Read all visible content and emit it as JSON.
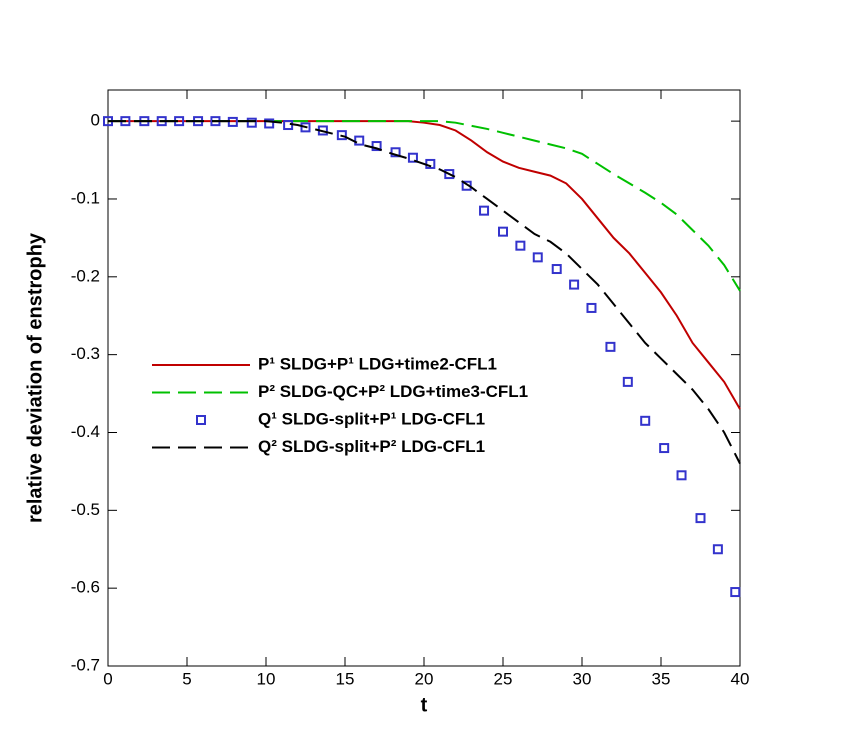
{
  "chart_data": {
    "type": "line",
    "xlabel": "t",
    "ylabel": "relative deviation of enstrophy",
    "xlim": [
      0,
      40
    ],
    "xticks": [
      0,
      5,
      10,
      15,
      20,
      25,
      30,
      35,
      40
    ],
    "ylim": [
      -0.7,
      0.04
    ],
    "yticks": [
      -0.7,
      -0.6,
      -0.5,
      -0.4,
      -0.3,
      -0.2,
      -0.1,
      0
    ],
    "legend": "center-left",
    "series": [
      {
        "name": "P¹ SLDG+P¹ LDG+time2-CFL1",
        "color": "#c00000",
        "style": "solid",
        "x": [
          0,
          1,
          2,
          3,
          4,
          5,
          6,
          7,
          8,
          9,
          10,
          11,
          12,
          13,
          14,
          15,
          16,
          17,
          18,
          19,
          20,
          21,
          22,
          23,
          24,
          25,
          26,
          27,
          28,
          29,
          30,
          31,
          32,
          33,
          34,
          35,
          36,
          37,
          38,
          39,
          40
        ],
        "values": [
          0,
          0,
          0,
          0,
          0,
          0,
          0,
          0,
          0,
          0,
          0,
          0,
          0,
          0,
          0,
          0,
          0,
          0,
          0,
          0,
          -0.002,
          -0.005,
          -0.012,
          -0.025,
          -0.04,
          -0.052,
          -0.06,
          -0.065,
          -0.07,
          -0.08,
          -0.1,
          -0.125,
          -0.15,
          -0.17,
          -0.195,
          -0.22,
          -0.25,
          -0.285,
          -0.31,
          -0.335,
          -0.37
        ]
      },
      {
        "name": "P² SLDG-QC+P² LDG+time3-CFL1",
        "color": "#00c000",
        "style": "dash",
        "x": [
          0,
          1,
          2,
          3,
          4,
          5,
          6,
          7,
          8,
          9,
          10,
          11,
          12,
          13,
          14,
          15,
          16,
          17,
          18,
          19,
          20,
          21,
          22,
          23,
          24,
          25,
          26,
          27,
          28,
          29,
          30,
          31,
          32,
          33,
          34,
          35,
          36,
          37,
          38,
          39,
          40
        ],
        "values": [
          0,
          0,
          0,
          0,
          0,
          0,
          0,
          0,
          0,
          0,
          0,
          0,
          0,
          0,
          0,
          0,
          0,
          0,
          0,
          0,
          0,
          0,
          -0.002,
          -0.006,
          -0.01,
          -0.015,
          -0.02,
          -0.025,
          -0.03,
          -0.035,
          -0.042,
          -0.055,
          -0.068,
          -0.08,
          -0.092,
          -0.105,
          -0.12,
          -0.14,
          -0.16,
          -0.185,
          -0.218
        ]
      },
      {
        "name": "Q¹ SLDG-split+P¹ LDG-CFL1",
        "color": "#3333cc",
        "style": "square",
        "x": [
          0,
          1.1,
          2.3,
          3.4,
          4.5,
          5.7,
          6.8,
          7.9,
          9.1,
          10.2,
          11.4,
          12.5,
          13.6,
          14.8,
          15.9,
          17.0,
          18.2,
          19.3,
          20.4,
          21.6,
          22.7,
          23.8,
          25.0,
          26.1,
          27.2,
          28.4,
          29.5,
          30.6,
          31.8,
          32.9,
          34.0,
          35.2,
          36.3,
          37.5,
          38.6,
          39.7
        ],
        "values": [
          0,
          0,
          0,
          0,
          0,
          0,
          0,
          -0.001,
          -0.002,
          -0.003,
          -0.005,
          -0.008,
          -0.012,
          -0.018,
          -0.025,
          -0.032,
          -0.04,
          -0.047,
          -0.055,
          -0.068,
          -0.083,
          -0.115,
          -0.142,
          -0.16,
          -0.175,
          -0.19,
          -0.21,
          -0.24,
          -0.29,
          -0.335,
          -0.385,
          -0.42,
          -0.455,
          -0.51,
          -0.55,
          -0.605
        ]
      },
      {
        "name": "Q² SLDG-split+P² LDG-CFL1",
        "color": "#000000",
        "style": "dash",
        "x": [
          0,
          1,
          2,
          3,
          4,
          5,
          6,
          7,
          8,
          9,
          10,
          11,
          12,
          13,
          14,
          15,
          16,
          17,
          18,
          19,
          20,
          21,
          22,
          23,
          24,
          25,
          26,
          27,
          28,
          29,
          30,
          31,
          32,
          33,
          34,
          35,
          36,
          37,
          38,
          39,
          40
        ],
        "values": [
          0,
          0,
          0,
          0,
          0,
          0,
          0,
          0,
          0,
          0,
          0,
          -0.002,
          -0.005,
          -0.01,
          -0.015,
          -0.02,
          -0.03,
          -0.035,
          -0.042,
          -0.048,
          -0.055,
          -0.062,
          -0.072,
          -0.085,
          -0.1,
          -0.115,
          -0.13,
          -0.145,
          -0.155,
          -0.17,
          -0.19,
          -0.21,
          -0.235,
          -0.26,
          -0.285,
          -0.305,
          -0.325,
          -0.345,
          -0.37,
          -0.4,
          -0.44
        ]
      }
    ]
  }
}
